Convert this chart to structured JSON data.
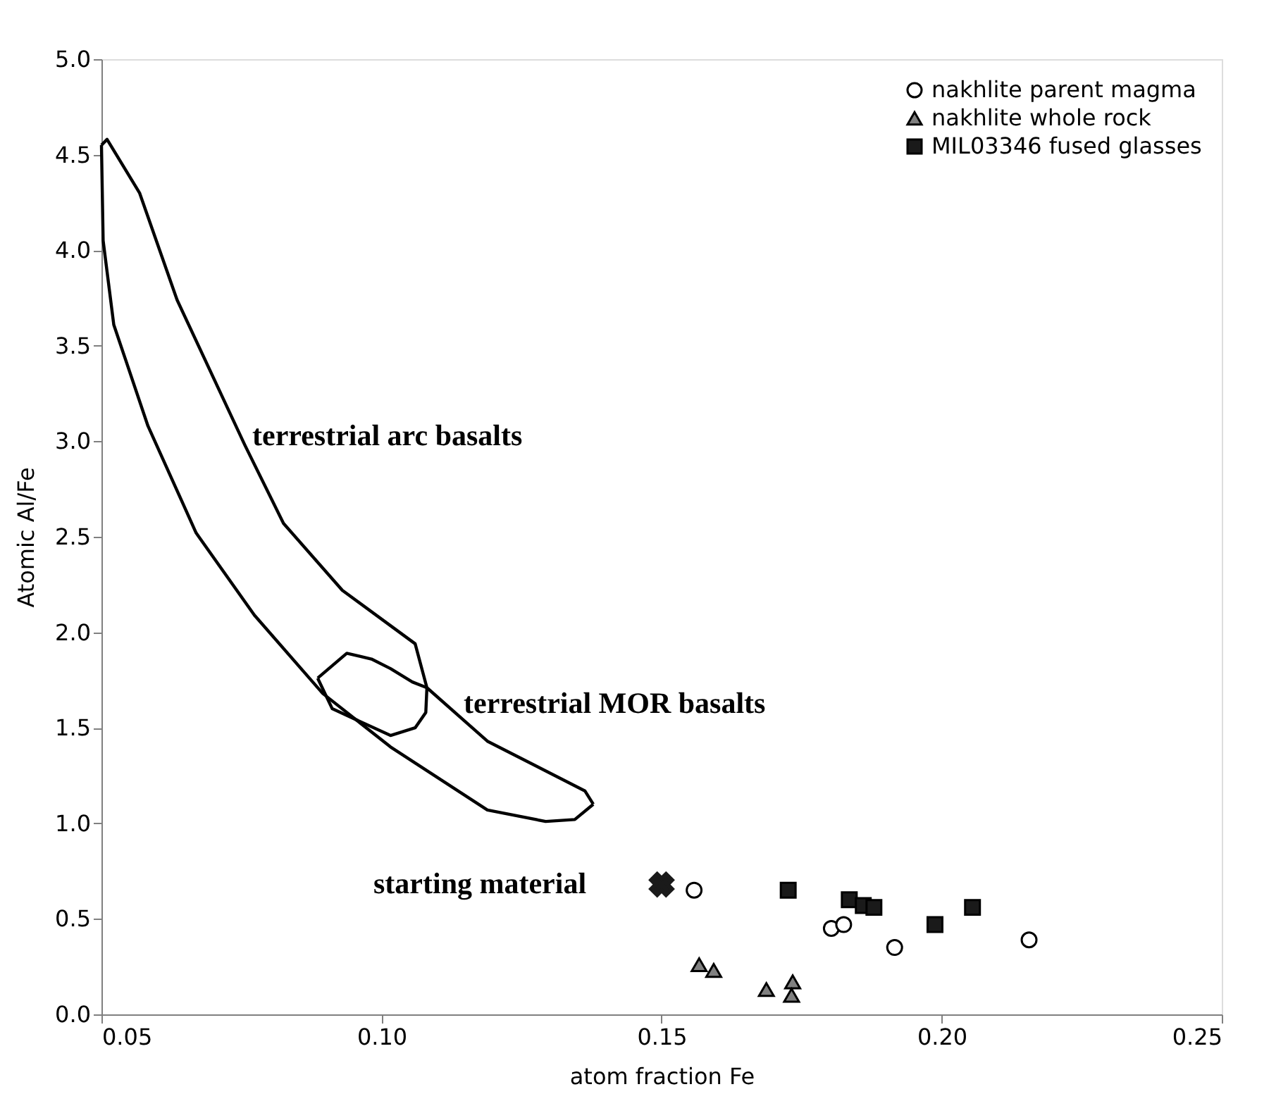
{
  "chart_data": {
    "type": "scatter",
    "xlabel": "atom fraction Fe",
    "ylabel": "Atomic Al/Fe",
    "xlim": [
      0.05,
      0.25
    ],
    "ylim": [
      0,
      5
    ],
    "xticks": [
      0.05,
      {
        "value": 0.1,
        "label": "0.10"
      },
      0.15,
      {
        "value": 0.2,
        "label": "0.20"
      },
      0.25
    ],
    "yticks": [
      {
        "value": 0,
        "label": "0.0"
      },
      0.5,
      {
        "value": 1,
        "label": "1.0"
      },
      1.5,
      {
        "value": 2,
        "label": "2.0"
      },
      2.5,
      {
        "value": 3,
        "label": "3.0"
      },
      3.5,
      {
        "value": 4,
        "label": "4.0"
      },
      4.5,
      {
        "value": 5,
        "label": "5.0"
      }
    ],
    "grid": false,
    "legend": "top right",
    "series": [
      {
        "type": "line",
        "color": "#000000",
        "marker": "none",
        "line_style": "solid",
        "x": [
          0.05,
          0.051,
          0.0568,
          0.0635,
          0.0756,
          0.0825,
          0.093,
          0.106,
          0.1081,
          0.1189,
          0.1363,
          0.1378
        ],
        "values": [
          4.55,
          4.58,
          4.3,
          3.74,
          2.98,
          2.57,
          2.22,
          1.94,
          1.71,
          1.43,
          1.17,
          1.1
        ]
      },
      {
        "type": "line",
        "color": "#000000",
        "marker": "none",
        "line_style": "solid",
        "x": [
          0.05,
          0.0503,
          0.0522,
          0.0583,
          0.0669,
          0.0773,
          0.0895,
          0.1016,
          0.1189,
          0.1293,
          0.1345,
          0.1378
        ],
        "values": [
          4.55,
          4.05,
          3.61,
          3.08,
          2.52,
          2.09,
          1.68,
          1.4,
          1.07,
          1.01,
          1.02,
          1.1
        ]
      },
      {
        "type": "line",
        "color": "#000000",
        "marker": "none",
        "line_style": "solid",
        "x": [
          0.0886,
          0.0938,
          0.0982,
          0.1016,
          0.1055,
          0.1081
        ],
        "values": [
          1.76,
          1.89,
          1.86,
          1.81,
          1.74,
          1.71
        ]
      },
      {
        "type": "line",
        "color": "#000000",
        "marker": "none",
        "line_style": "solid",
        "x": [
          0.0886,
          0.0912,
          0.1016,
          0.106,
          0.1079,
          0.1081
        ],
        "values": [
          1.76,
          1.6,
          1.46,
          1.5,
          1.58,
          1.71
        ]
      },
      {
        "name": "nakhlite parent magma",
        "marker": "circle",
        "color": "#ffffff",
        "x": [
          0.1558,
          0.1803,
          0.1825,
          0.1916,
          0.2156
        ],
        "values": [
          0.65,
          0.45,
          0.47,
          0.35,
          0.39
        ]
      },
      {
        "name": "nakhlite whole rock",
        "marker": "triangle",
        "color": "#808080",
        "x": [
          0.1567,
          0.1593,
          0.1687,
          0.1734,
          0.1732
        ],
        "values": [
          0.26,
          0.23,
          0.13,
          0.17,
          0.1
        ]
      },
      {
        "name": "MIL03346 fused glasses",
        "marker": "square",
        "color": "#1a1a1a",
        "x": [
          0.1726,
          0.1835,
          0.186,
          0.1879,
          0.1988,
          0.2055
        ],
        "values": [
          0.65,
          0.6,
          0.57,
          0.56,
          0.47,
          0.56
        ]
      },
      {
        "marker": "cross",
        "color": "#1a1a1a",
        "x": [
          0.15
        ],
        "values": [
          0.68
        ]
      }
    ],
    "annotations": [
      "terrestrial arc basalts",
      "terrestrial MOR basalts",
      "starting material"
    ]
  }
}
